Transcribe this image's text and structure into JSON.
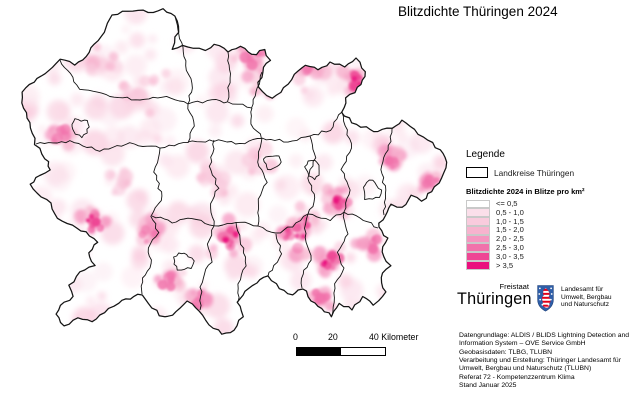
{
  "title": "Blitzdichte Thüringen 2024",
  "legend": {
    "heading": "Legende",
    "boundary_label": "Landkreise Thüringen",
    "scale_heading": "Blitzdichte 2024 in Blitze pro km²",
    "classes": [
      {
        "label": "<= 0,5",
        "color": "#ffffff"
      },
      {
        "label": "0,5 - 1,0",
        "color": "#fbdfea"
      },
      {
        "label": "1,0 - 1,5",
        "color": "#f9cbdd"
      },
      {
        "label": "1,5 - 2,0",
        "color": "#f7b3ce"
      },
      {
        "label": "2,0 - 2,5",
        "color": "#f596c0"
      },
      {
        "label": "2,5 - 3,0",
        "color": "#f172ab"
      },
      {
        "label": "3,0 - 3,5",
        "color": "#ee4694"
      },
      {
        "label": "> 3,5",
        "color": "#ea0f7e"
      }
    ]
  },
  "scalebar": {
    "tick_0": "0",
    "tick_20": "20",
    "tick_40": "40 Kilometer"
  },
  "logo": {
    "state_small": "Freistaat",
    "state_large": "Thüringen",
    "agency_lines": [
      "Landesamt für",
      "Umwelt, Bergbau",
      "und Naturschutz"
    ],
    "shield_blue": "#2e5ea8",
    "shield_red": "#e2001a"
  },
  "credits": {
    "lines": [
      "Datengrundlage:  ALDIS / BLIDS Lightning Detection and",
      "Information System – OVE Service GmbH",
      "Geobasisdaten: TLBG, TLUBN",
      "Verarbeitung und Erstellung: Thüringer Landesamt für",
      "Umwelt, Bergbau und Naturschutz (TLUBN)",
      "Referat 72 - Kompetenzzentrum Klima",
      "Stand Januar 2025"
    ]
  },
  "map": {
    "boundary_color": "#141414",
    "region_name": "Thüringen"
  }
}
